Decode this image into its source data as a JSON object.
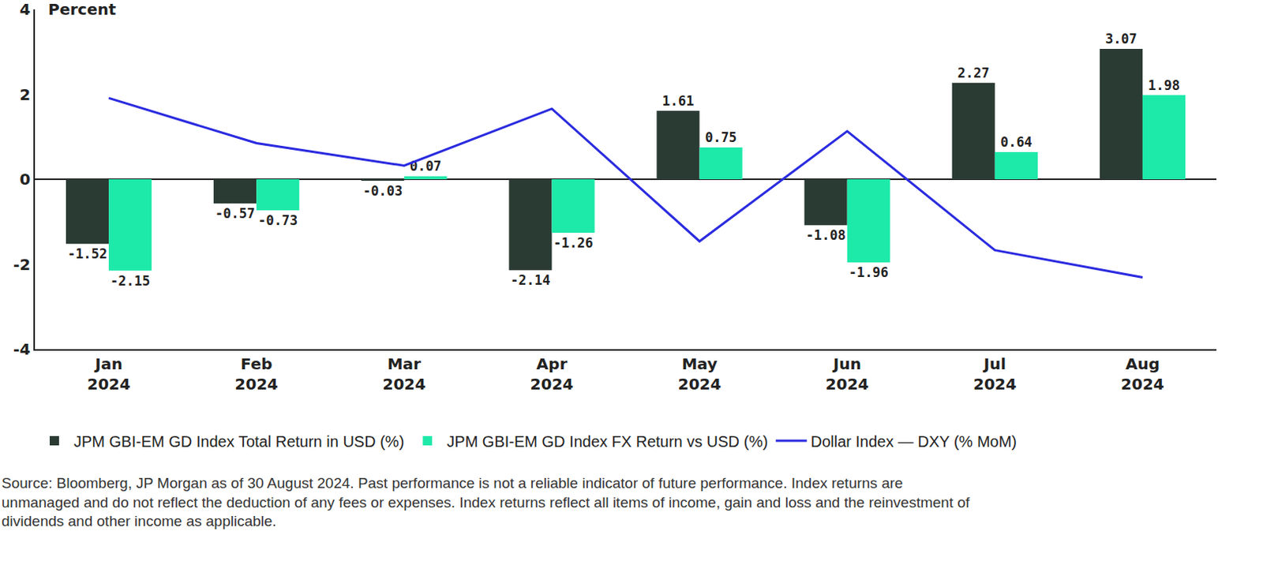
{
  "chart_data": {
    "type": "bar",
    "ylabel": "Percent",
    "categories": [
      "Jan 2024",
      "Feb 2024",
      "Mar 2024",
      "Apr 2024",
      "May 2024",
      "Jun 2024",
      "Jul 2024",
      "Aug 2024"
    ],
    "series": [
      {
        "name": "JPM GBI-EM GD Index Total Return in USD (%)",
        "type": "bar",
        "color": "#2a3b33",
        "values": [
          -1.52,
          -0.57,
          -0.03,
          -2.14,
          1.61,
          -1.08,
          2.27,
          3.07
        ]
      },
      {
        "name": "JPM GBI-EM GD Index FX Return vs USD (%)",
        "type": "bar",
        "color": "#1de9a9",
        "values": [
          -2.15,
          -0.73,
          0.07,
          -1.26,
          0.75,
          -1.96,
          0.64,
          1.98
        ]
      },
      {
        "name": "Dollar Index — DXY (% MoM)",
        "type": "line",
        "color": "#2b2be0",
        "line_style": "solid",
        "data_labels": false,
        "values": [
          1.91,
          0.85,
          0.32,
          1.66,
          -1.46,
          1.13,
          -1.67,
          -2.31
        ]
      }
    ],
    "ylim": [
      -4,
      4
    ],
    "yticks": [
      -4,
      -2,
      0,
      2,
      4
    ],
    "grid": false,
    "legend": "bottom",
    "data_labels": true,
    "note": [
      "Source: Bloomberg, JP Morgan as of 30 August 2024. Past performance is not a reliable indicator of future performance. Index returns are",
      "unmanaged and do not reflect the deduction of any fees or expenses. Index returns reflect all items of income, gain and loss and the reinvestment of",
      "dividends and other income as applicable."
    ]
  }
}
